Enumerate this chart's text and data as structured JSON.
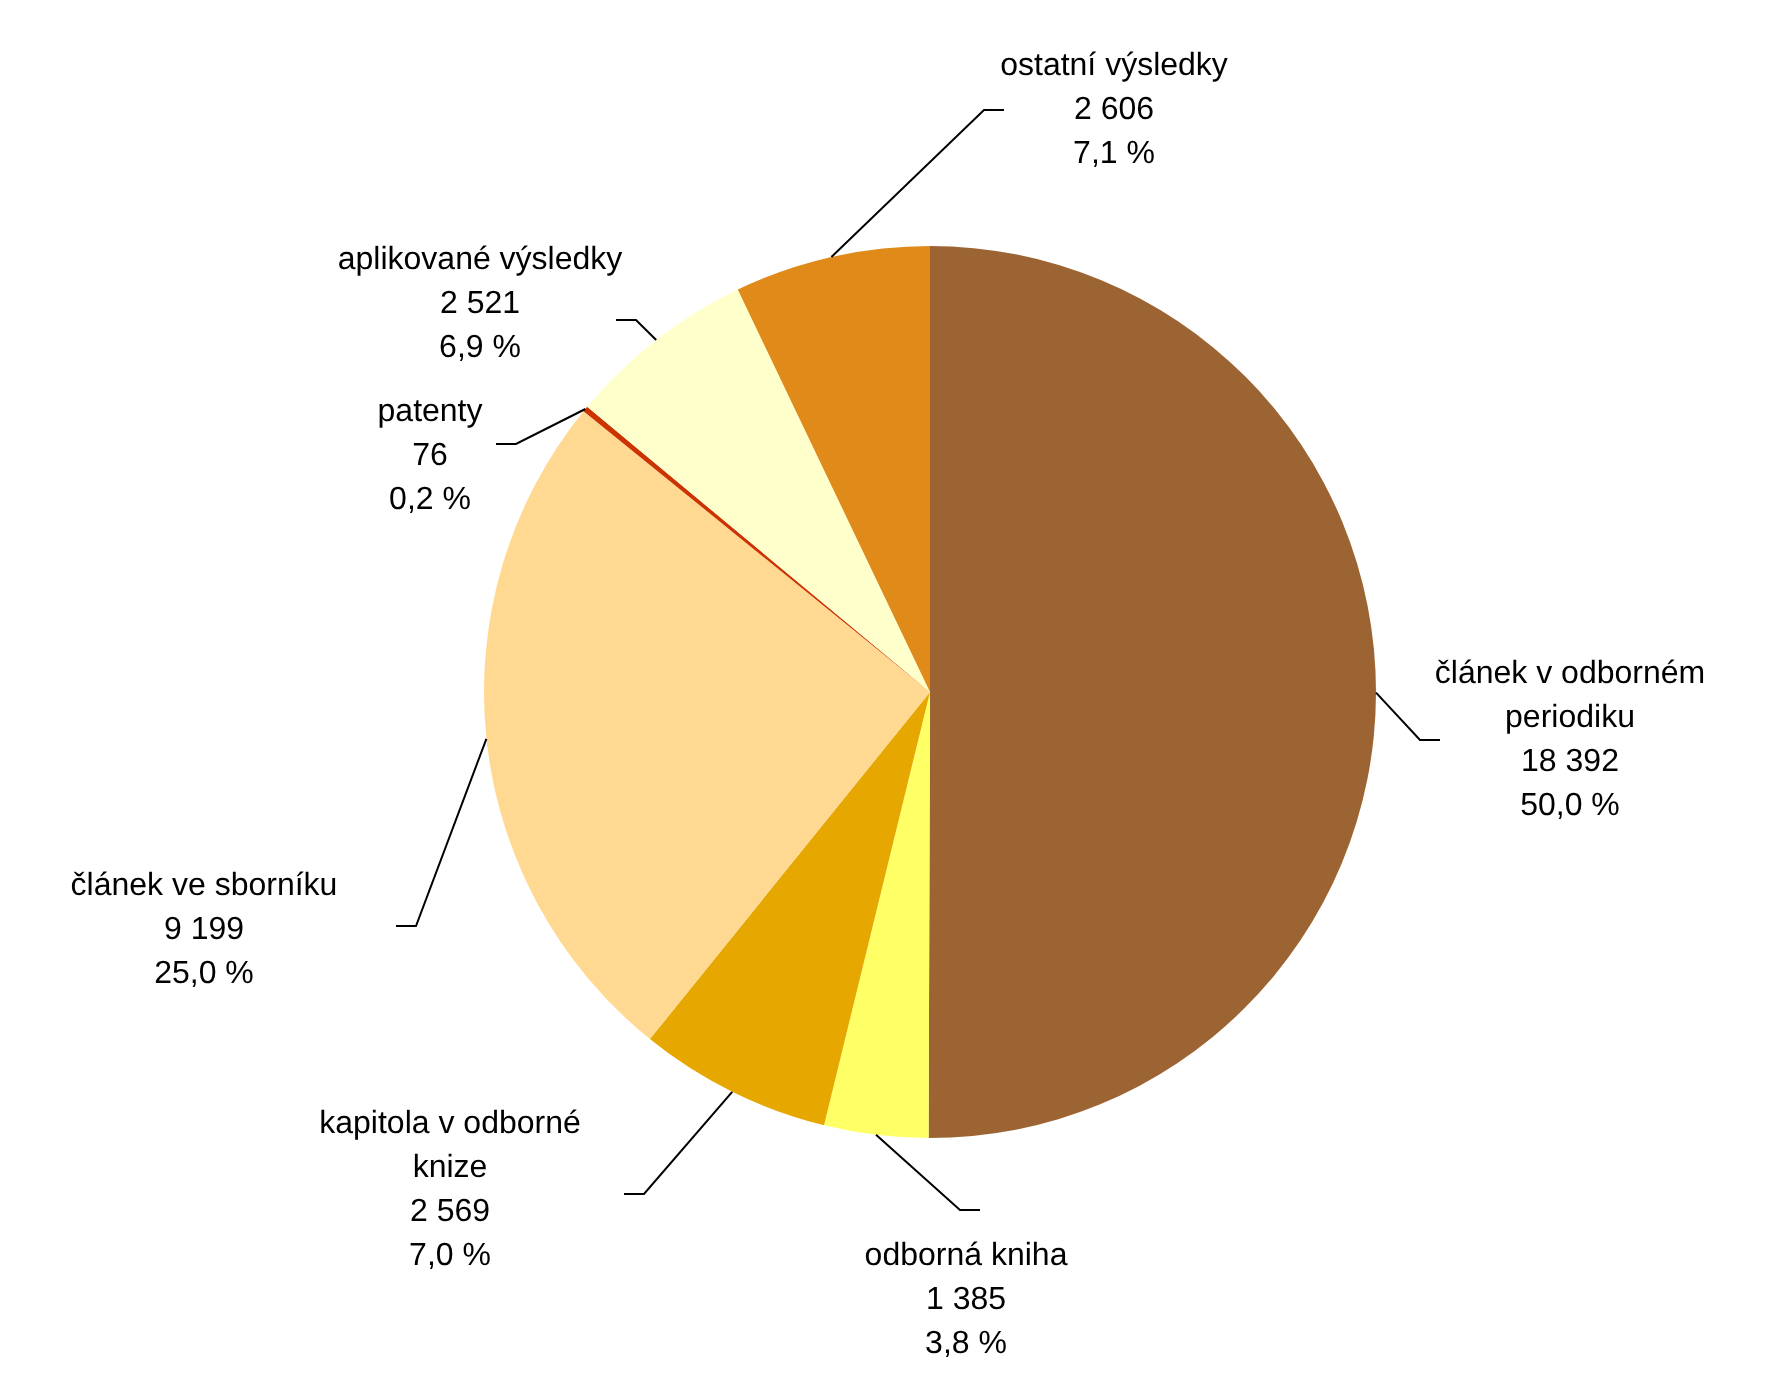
{
  "chart_data": {
    "type": "pie",
    "categories": [
      "článek v odborném periodiku",
      "odborná kniha",
      "kapitola v odborné knize",
      "článek ve sborníku",
      "patenty",
      "aplikované výsledky",
      "ostatní výsledky"
    ],
    "values": [
      18392,
      1385,
      2569,
      9199,
      76,
      2521,
      2606
    ],
    "colors": [
      "#9c6433",
      "#ffff66",
      "#e6a800",
      "#ffd991",
      "#cc3300",
      "#ffffcc",
      "#e08a1a"
    ],
    "value_labels": [
      "18 392\n50,0 %",
      "1 385\n3,8 %",
      "2 569\n7,0 %",
      "9 199\n25,0 %",
      "76\n0,2 %",
      "2 521\n6,9 %",
      "2 606\n7,1 %"
    ],
    "legend": false
  }
}
